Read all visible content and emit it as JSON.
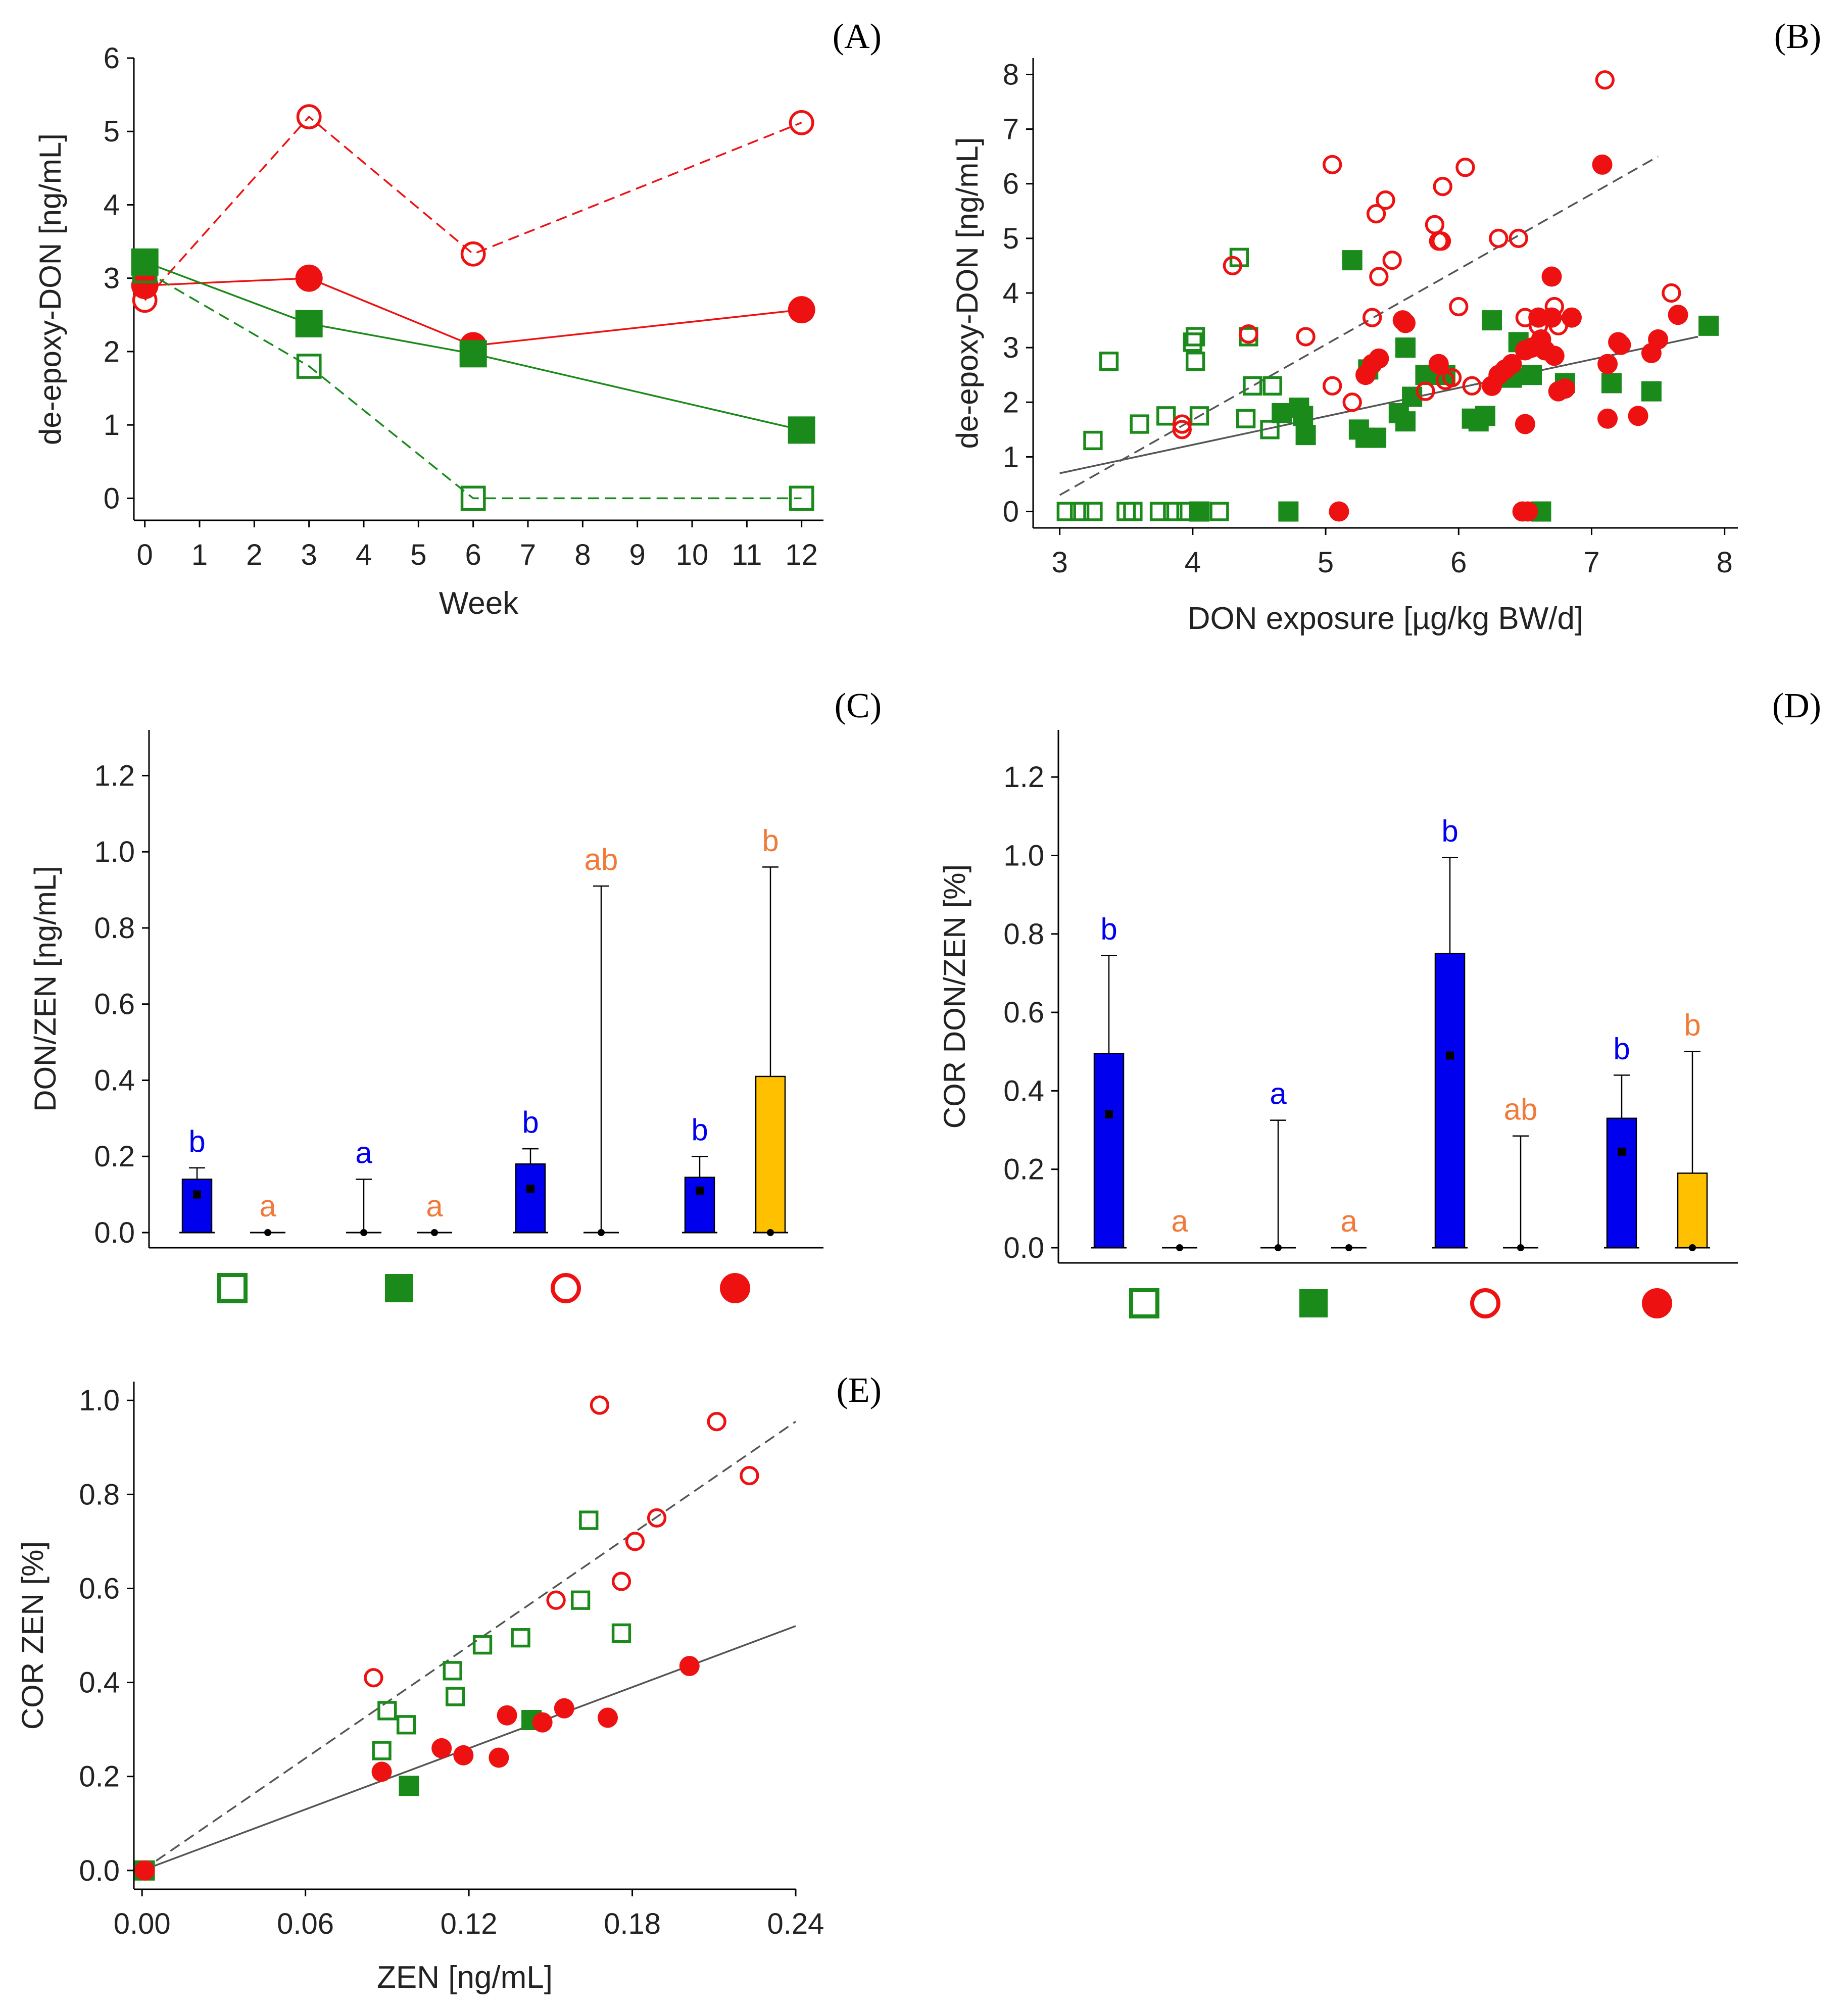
{
  "colors": {
    "green": "#1a8a1a",
    "red": "#ee1111",
    "blue": "#0000ee",
    "orange": "#f07a3a",
    "yellow": "#ffc000",
    "black": "#000000",
    "grey": "#555555"
  },
  "chart_data": [
    {
      "id": "A",
      "type": "line",
      "panel_label": "(A)",
      "xlabel": "Week",
      "ylabel": "de-epoxy-DON [ng/mL]",
      "xlim": [
        -0.2,
        12.4
      ],
      "ylim": [
        -0.3,
        6.0
      ],
      "xticks": [
        0,
        1,
        2,
        3,
        4,
        5,
        6,
        7,
        8,
        9,
        10,
        11,
        12
      ],
      "yticks": [
        0,
        1,
        2,
        3,
        4,
        5,
        6
      ],
      "series": [
        {
          "name": "open-circle",
          "marker": "open-circle",
          "color": "red",
          "dash": true,
          "x": [
            0,
            3,
            6,
            12
          ],
          "y": [
            2.7,
            5.2,
            3.33,
            5.12
          ]
        },
        {
          "name": "filled-circle",
          "marker": "filled-circle",
          "color": "red",
          "dash": false,
          "x": [
            0,
            3,
            6,
            12
          ],
          "y": [
            2.9,
            3.0,
            2.08,
            2.57
          ]
        },
        {
          "name": "filled-square",
          "marker": "filled-square",
          "color": "green",
          "dash": false,
          "x": [
            0,
            3,
            6,
            12
          ],
          "y": [
            3.22,
            2.38,
            1.97,
            0.93
          ]
        },
        {
          "name": "open-square",
          "marker": "open-square",
          "color": "green",
          "dash": true,
          "x": [
            0,
            3,
            6,
            12
          ],
          "y": [
            3.1,
            1.8,
            0,
            0
          ]
        }
      ]
    },
    {
      "id": "B",
      "type": "scatter",
      "panel_label": "(B)",
      "xlabel": "DON exposure [µg/kg BW/d]",
      "ylabel": "de-epoxy-DON [ng/mL]",
      "xlim": [
        2.8,
        8.1
      ],
      "ylim": [
        -0.3,
        8.3
      ],
      "xticks": [
        3,
        4,
        5,
        6,
        7,
        8
      ],
      "yticks": [
        0,
        1,
        2,
        3,
        4,
        5,
        6,
        7,
        8
      ],
      "fits": [
        {
          "name": "dashed-fit",
          "dash": true,
          "x": [
            3.0,
            7.5
          ],
          "y": [
            0.3,
            6.5
          ]
        },
        {
          "name": "solid-fit",
          "dash": false,
          "x": [
            3.0,
            7.8
          ],
          "y": [
            0.7,
            3.2
          ]
        }
      ],
      "series": [
        {
          "name": "open-square",
          "marker": "open-square",
          "color": "green",
          "points": [
            [
              3.05,
              0
            ],
            [
              3.15,
              0
            ],
            [
              3.25,
              0
            ],
            [
              3.5,
              0
            ],
            [
              3.55,
              0
            ],
            [
              3.75,
              0
            ],
            [
              3.85,
              0
            ],
            [
              3.95,
              0
            ],
            [
              4.05,
              0
            ],
            [
              4.2,
              0
            ],
            [
              3.25,
              1.3
            ],
            [
              3.37,
              2.75
            ],
            [
              3.6,
              1.6
            ],
            [
              3.8,
              1.75
            ],
            [
              4.0,
              3.1
            ],
            [
              4.02,
              3.2
            ],
            [
              4.02,
              2.75
            ],
            [
              4.05,
              1.75
            ],
            [
              4.35,
              4.65
            ],
            [
              4.4,
              1.7
            ],
            [
              4.42,
              3.2
            ],
            [
              4.45,
              2.3
            ],
            [
              4.6,
              2.3
            ],
            [
              4.58,
              1.5
            ]
          ]
        },
        {
          "name": "filled-square",
          "marker": "filled-square",
          "color": "green",
          "points": [
            [
              4.05,
              0
            ],
            [
              4.72,
              0
            ],
            [
              6.62,
              0
            ],
            [
              4.67,
              1.8
            ],
            [
              4.8,
              1.9
            ],
            [
              4.83,
              1.75
            ],
            [
              4.85,
              1.4
            ],
            [
              5.2,
              4.6
            ],
            [
              5.25,
              1.5
            ],
            [
              5.3,
              1.35
            ],
            [
              5.38,
              1.35
            ],
            [
              5.32,
              2.6
            ],
            [
              5.55,
              1.8
            ],
            [
              5.6,
              1.65
            ],
            [
              5.6,
              3.0
            ],
            [
              5.65,
              2.1
            ],
            [
              5.75,
              2.5
            ],
            [
              5.9,
              2.5
            ],
            [
              6.1,
              1.7
            ],
            [
              6.15,
              1.65
            ],
            [
              6.2,
              1.75
            ],
            [
              6.25,
              3.5
            ],
            [
              6.4,
              2.45
            ],
            [
              6.45,
              3.1
            ],
            [
              6.55,
              2.5
            ],
            [
              6.8,
              2.35
            ],
            [
              7.15,
              2.35
            ],
            [
              7.45,
              2.2
            ],
            [
              7.88,
              3.4
            ]
          ]
        },
        {
          "name": "open-circle",
          "marker": "open-circle",
          "color": "red",
          "points": [
            [
              3.92,
              1.6
            ],
            [
              3.92,
              1.5
            ],
            [
              4.3,
              4.5
            ],
            [
              4.42,
              3.25
            ],
            [
              4.85,
              3.2
            ],
            [
              5.05,
              6.35
            ],
            [
              5.05,
              2.3
            ],
            [
              5.2,
              2.0
            ],
            [
              5.35,
              3.55
            ],
            [
              5.38,
              5.45
            ],
            [
              5.4,
              4.3
            ],
            [
              5.45,
              5.7
            ],
            [
              5.5,
              4.6
            ],
            [
              5.6,
              3.45
            ],
            [
              5.75,
              2.2
            ],
            [
              5.82,
              5.25
            ],
            [
              5.85,
              4.95
            ],
            [
              5.87,
              4.95
            ],
            [
              5.88,
              5.95
            ],
            [
              5.9,
              2.4
            ],
            [
              5.95,
              2.45
            ],
            [
              6.0,
              3.75
            ],
            [
              6.05,
              6.3
            ],
            [
              6.1,
              2.3
            ],
            [
              6.3,
              5.0
            ],
            [
              6.45,
              5.0
            ],
            [
              6.5,
              3.55
            ],
            [
              6.6,
              3.4
            ],
            [
              6.72,
              3.75
            ],
            [
              6.75,
              3.4
            ],
            [
              7.1,
              7.9
            ],
            [
              7.6,
              4.0
            ]
          ]
        },
        {
          "name": "filled-circle",
          "marker": "filled-circle",
          "color": "red",
          "points": [
            [
              5.1,
              0
            ],
            [
              6.48,
              0
            ],
            [
              6.52,
              0
            ],
            [
              5.3,
              2.5
            ],
            [
              5.35,
              2.7
            ],
            [
              5.4,
              2.8
            ],
            [
              5.58,
              3.5
            ],
            [
              5.6,
              3.45
            ],
            [
              5.85,
              2.7
            ],
            [
              6.25,
              2.3
            ],
            [
              6.3,
              2.5
            ],
            [
              6.35,
              2.6
            ],
            [
              6.4,
              2.7
            ],
            [
              6.5,
              2.95
            ],
            [
              6.5,
              1.6
            ],
            [
              6.55,
              3.0
            ],
            [
              6.6,
              3.55
            ],
            [
              6.62,
              3.15
            ],
            [
              6.65,
              2.95
            ],
            [
              6.7,
              3.55
            ],
            [
              6.7,
              4.3
            ],
            [
              6.72,
              2.85
            ],
            [
              6.75,
              2.2
            ],
            [
              6.8,
              2.25
            ],
            [
              6.85,
              3.55
            ],
            [
              7.08,
              6.35
            ],
            [
              7.12,
              1.7
            ],
            [
              7.12,
              2.7
            ],
            [
              7.2,
              3.1
            ],
            [
              7.22,
              3.05
            ],
            [
              7.35,
              1.75
            ],
            [
              7.45,
              2.9
            ],
            [
              7.5,
              3.15
            ],
            [
              7.65,
              3.6
            ]
          ]
        }
      ]
    },
    {
      "id": "C",
      "type": "bar",
      "panel_label": "(C)",
      "ylabel": "DON/ZEN [ng/mL]",
      "xlabel": "",
      "ylim": [
        -0.05,
        1.32
      ],
      "yticks": [
        "0.0",
        "0.2",
        "0.4",
        "0.6",
        "0.8",
        "1.0",
        "1.2"
      ],
      "ytick_values": [
        0,
        0.2,
        0.4,
        0.6,
        0.8,
        1.0,
        1.2
      ],
      "groups": [
        "open-square",
        "filled-square",
        "open-circle",
        "filled-circle"
      ],
      "series": [
        {
          "name": "DON",
          "color": "blue",
          "label_color": "blue",
          "values": [
            0.14,
            0,
            0.18,
            0.145
          ],
          "err": [
            0.17,
            0.14,
            0.22,
            0.2
          ],
          "median": [
            0.1,
            0,
            0.115,
            0.11
          ],
          "letters": [
            "b",
            "a",
            "b",
            "b"
          ]
        },
        {
          "name": "ZEN",
          "color": "yellow",
          "label_color": "orange",
          "values": [
            0,
            0,
            0,
            0.41
          ],
          "err": [
            0,
            0,
            0.91,
            0.96
          ],
          "median": [
            0,
            0,
            0,
            0
          ],
          "letters": [
            "a",
            "a",
            "ab",
            "b"
          ]
        }
      ]
    },
    {
      "id": "D",
      "type": "bar",
      "panel_label": "(D)",
      "ylabel": "COR DON/ZEN [%]",
      "xlabel": "",
      "ylim": [
        -0.04,
        1.32
      ],
      "yticks": [
        "0.0",
        "0.2",
        "0.4",
        "0.6",
        "0.8",
        "1.0",
        "1.2"
      ],
      "ytick_values": [
        0,
        0.2,
        0.4,
        0.6,
        0.8,
        1.0,
        1.2
      ],
      "groups": [
        "open-square",
        "filled-square",
        "open-circle",
        "filled-circle"
      ],
      "series": [
        {
          "name": "DON",
          "color": "blue",
          "label_color": "blue",
          "values": [
            0.495,
            0,
            0.75,
            0.33
          ],
          "err": [
            0.745,
            0.325,
            0.995,
            0.44
          ],
          "median": [
            0.34,
            0,
            0.49,
            0.245
          ],
          "letters": [
            "b",
            "a",
            "b",
            "b"
          ]
        },
        {
          "name": "ZEN",
          "color": "yellow",
          "label_color": "orange",
          "values": [
            0,
            0,
            0,
            0.19
          ],
          "err": [
            0,
            0,
            0.285,
            0.5
          ],
          "median": [
            0,
            0,
            0,
            0
          ],
          "letters": [
            "a",
            "a",
            "ab",
            "b"
          ]
        }
      ]
    },
    {
      "id": "E",
      "type": "scatter",
      "panel_label": "(E)",
      "xlabel": "ZEN [ng/mL]",
      "ylabel": "COR ZEN [%]",
      "xlim": [
        -0.003,
        0.24
      ],
      "ylim": [
        -0.04,
        1.04
      ],
      "xticks": [
        "0.00",
        "0.06",
        "0.12",
        "0.18",
        "0.24"
      ],
      "xtick_values": [
        0,
        0.06,
        0.12,
        0.18,
        0.24
      ],
      "yticks": [
        "0.0",
        "0.2",
        "0.4",
        "0.6",
        "0.8",
        "1.0"
      ],
      "ytick_values": [
        0,
        0.2,
        0.4,
        0.6,
        0.8,
        1.0
      ],
      "fits": [
        {
          "name": "dashed-fit",
          "dash": true,
          "x": [
            0,
            0.24
          ],
          "y": [
            0,
            0.955
          ]
        },
        {
          "name": "solid-fit",
          "dash": false,
          "x": [
            0,
            0.24
          ],
          "y": [
            0,
            0.52
          ]
        }
      ],
      "series": [
        {
          "name": "open-square",
          "marker": "open-square",
          "color": "green",
          "points": [
            [
              0.088,
              0.255
            ],
            [
              0.09,
              0.34
            ],
            [
              0.097,
              0.31
            ],
            [
              0.114,
              0.425
            ],
            [
              0.115,
              0.37
            ],
            [
              0.125,
              0.48
            ],
            [
              0.139,
              0.495
            ],
            [
              0.161,
              0.575
            ],
            [
              0.164,
              0.745
            ],
            [
              0.176,
              0.505
            ]
          ]
        },
        {
          "name": "filled-square",
          "marker": "filled-square",
          "color": "green",
          "points": [
            [
              0.001,
              0.0
            ],
            [
              0.098,
              0.18
            ],
            [
              0.143,
              0.32
            ]
          ]
        },
        {
          "name": "open-circle",
          "marker": "open-circle",
          "color": "red",
          "points": [
            [
              0.085,
              0.41
            ],
            [
              0.152,
              0.575
            ],
            [
              0.168,
              0.99
            ],
            [
              0.176,
              0.615
            ],
            [
              0.181,
              0.7
            ],
            [
              0.189,
              0.75
            ],
            [
              0.211,
              0.955
            ],
            [
              0.223,
              0.84
            ]
          ]
        },
        {
          "name": "filled-circle",
          "marker": "filled-circle",
          "color": "red",
          "points": [
            [
              0.001,
              0.0
            ],
            [
              0.088,
              0.21
            ],
            [
              0.11,
              0.26
            ],
            [
              0.118,
              0.245
            ],
            [
              0.131,
              0.24
            ],
            [
              0.134,
              0.33
            ],
            [
              0.147,
              0.315
            ],
            [
              0.155,
              0.345
            ],
            [
              0.171,
              0.325
            ],
            [
              0.201,
              0.435
            ]
          ]
        }
      ]
    }
  ]
}
